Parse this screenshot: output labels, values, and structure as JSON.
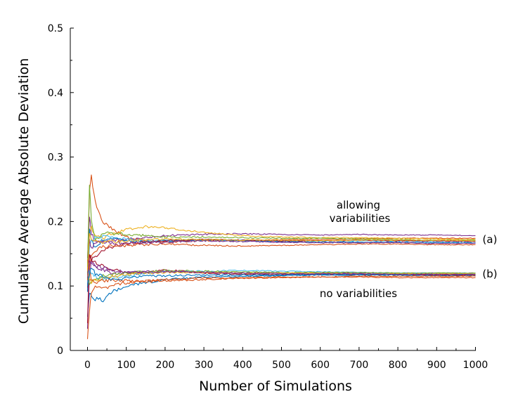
{
  "chart_data": {
    "type": "line",
    "title": "",
    "xlabel": "Number of Simulations",
    "ylabel": "Cumulative Average Absolute Deviation",
    "xlim": [
      -40,
      1000
    ],
    "ylim": [
      0,
      0.5
    ],
    "xticks": [
      0,
      100,
      200,
      300,
      400,
      500,
      600,
      700,
      800,
      900,
      1000
    ],
    "yticks": [
      0,
      0.1,
      0.2,
      0.3,
      0.4,
      0.5
    ],
    "ytick_labels": [
      "0",
      "0.1",
      "0.2",
      "0.3",
      "0.4",
      "0.5"
    ],
    "grid": false,
    "legend": "none",
    "annotations": [
      {
        "text": "allowing",
        "x": 700,
        "y": 0.226
      },
      {
        "text": "variabilities",
        "x": 700,
        "y": 0.205
      },
      {
        "text": "(a)",
        "x": 1040,
        "y": 0.172
      },
      {
        "text": "(b)",
        "x": 1040,
        "y": 0.119
      },
      {
        "text": "no variabilities",
        "x": 700,
        "y": 0.094
      }
    ],
    "groups": [
      {
        "label": "(a)",
        "series": [
          {
            "color": "#7E2F8E",
            "x": [
              0,
              5,
              10,
              20,
              40,
              60,
              100,
              150,
              200,
              300,
              400,
              500,
              600,
              700,
              800,
              900,
              1000
            ],
            "y": [
              0.14,
              0.21,
              0.18,
              0.17,
              0.165,
              0.17,
              0.172,
              0.175,
              0.178,
              0.18,
              0.181,
              0.18,
              0.179,
              0.18,
              0.179,
              0.179,
              0.178
            ]
          },
          {
            "color": "#D95319",
            "x": [
              0,
              5,
              10,
              20,
              40,
              60,
              100,
              150,
              200,
              300,
              400,
              500,
              600,
              700,
              800,
              900,
              1000
            ],
            "y": [
              0.12,
              0.25,
              0.27,
              0.23,
              0.2,
              0.19,
              0.175,
              0.17,
              0.168,
              0.17,
              0.171,
              0.172,
              0.172,
              0.173,
              0.174,
              0.174,
              0.174
            ]
          },
          {
            "color": "#EDB120",
            "x": [
              0,
              5,
              10,
              20,
              40,
              60,
              100,
              150,
              200,
              300,
              400,
              500,
              600,
              700,
              800,
              900,
              1000
            ],
            "y": [
              0.11,
              0.18,
              0.19,
              0.18,
              0.175,
              0.18,
              0.188,
              0.192,
              0.19,
              0.183,
              0.178,
              0.176,
              0.175,
              0.175,
              0.174,
              0.173,
              0.172
            ]
          },
          {
            "color": "#77AC30",
            "x": [
              0,
              5,
              10,
              20,
              40,
              60,
              100,
              150,
              200,
              300,
              400,
              500,
              600,
              700,
              800,
              900,
              1000
            ],
            "y": [
              0.13,
              0.26,
              0.2,
              0.17,
              0.18,
              0.182,
              0.18,
              0.178,
              0.176,
              0.176,
              0.175,
              0.174,
              0.174,
              0.173,
              0.172,
              0.171,
              0.171
            ]
          },
          {
            "color": "#4DBEEE",
            "x": [
              0,
              5,
              10,
              20,
              40,
              60,
              100,
              150,
              200,
              300,
              400,
              500,
              600,
              700,
              800,
              900,
              1000
            ],
            "y": [
              0.1,
              0.16,
              0.17,
              0.175,
              0.178,
              0.175,
              0.172,
              0.17,
              0.171,
              0.172,
              0.171,
              0.17,
              0.17,
              0.17,
              0.17,
              0.169,
              0.169
            ]
          },
          {
            "color": "#0072BD",
            "x": [
              0,
              5,
              10,
              20,
              40,
              60,
              100,
              150,
              200,
              300,
              400,
              500,
              600,
              700,
              800,
              900,
              1000
            ],
            "y": [
              0.09,
              0.19,
              0.17,
              0.16,
              0.172,
              0.175,
              0.17,
              0.168,
              0.17,
              0.171,
              0.17,
              0.169,
              0.168,
              0.168,
              0.168,
              0.167,
              0.167
            ]
          },
          {
            "color": "#A2142F",
            "x": [
              0,
              5,
              10,
              20,
              40,
              60,
              100,
              150,
              200,
              300,
              400,
              500,
              600,
              700,
              800,
              900,
              1000
            ],
            "y": [
              0.1,
              0.15,
              0.14,
              0.145,
              0.155,
              0.16,
              0.165,
              0.168,
              0.17,
              0.172,
              0.171,
              0.17,
              0.17,
              0.171,
              0.17,
              0.17,
              0.169
            ]
          },
          {
            "color": "#D95319",
            "x": [
              0,
              5,
              10,
              20,
              40,
              60,
              100,
              150,
              200,
              300,
              400,
              500,
              600,
              700,
              800,
              900,
              1000
            ],
            "y": [
              0.11,
              0.13,
              0.15,
              0.155,
              0.16,
              0.162,
              0.163,
              0.164,
              0.165,
              0.163,
              0.162,
              0.163,
              0.164,
              0.165,
              0.165,
              0.164,
              0.164
            ]
          },
          {
            "color": "#7E2F8E",
            "x": [
              0,
              5,
              10,
              20,
              40,
              60,
              100,
              150,
              200,
              300,
              400,
              500,
              600,
              700,
              800,
              900,
              1000
            ],
            "y": [
              0.12,
              0.17,
              0.16,
              0.165,
              0.17,
              0.168,
              0.166,
              0.167,
              0.168,
              0.17,
              0.169,
              0.168,
              0.167,
              0.167,
              0.167,
              0.166,
              0.166
            ]
          },
          {
            "color": "#EDB120",
            "x": [
              0,
              5,
              10,
              20,
              40,
              60,
              100,
              150,
              200,
              300,
              400,
              500,
              600,
              700,
              800,
              900,
              1000
            ],
            "y": [
              0.12,
              0.18,
              0.175,
              0.17,
              0.168,
              0.169,
              0.17,
              0.172,
              0.173,
              0.172,
              0.171,
              0.171,
              0.17,
              0.171,
              0.171,
              0.171,
              0.17
            ]
          }
        ]
      },
      {
        "label": "(b)",
        "series": [
          {
            "color": "#0072BD",
            "x": [
              0,
              5,
              10,
              20,
              40,
              60,
              100,
              150,
              200,
              300,
              400,
              500,
              600,
              700,
              800,
              900,
              1000
            ],
            "y": [
              0.05,
              0.09,
              0.085,
              0.08,
              0.078,
              0.09,
              0.1,
              0.105,
              0.11,
              0.114,
              0.115,
              0.116,
              0.117,
              0.117,
              0.117,
              0.116,
              0.116
            ]
          },
          {
            "color": "#D95319",
            "x": [
              0,
              5,
              10,
              20,
              40,
              60,
              100,
              150,
              200,
              300,
              400,
              500,
              600,
              700,
              800,
              900,
              1000
            ],
            "y": [
              0.02,
              0.06,
              0.09,
              0.1,
              0.095,
              0.1,
              0.105,
              0.108,
              0.11,
              0.112,
              0.113,
              0.114,
              0.114,
              0.114,
              0.113,
              0.113,
              0.113
            ]
          },
          {
            "color": "#7E2F8E",
            "x": [
              0,
              5,
              10,
              20,
              40,
              60,
              100,
              150,
              200,
              300,
              400,
              500,
              600,
              700,
              800,
              900,
              1000
            ],
            "y": [
              0.03,
              0.12,
              0.14,
              0.13,
              0.125,
              0.12,
              0.12,
              0.122,
              0.122,
              0.121,
              0.12,
              0.12,
              0.12,
              0.12,
              0.12,
              0.12,
              0.12
            ]
          },
          {
            "color": "#A2142F",
            "x": [
              0,
              5,
              10,
              20,
              40,
              60,
              100,
              150,
              200,
              300,
              400,
              500,
              600,
              700,
              800,
              900,
              1000
            ],
            "y": [
              0.04,
              0.15,
              0.14,
              0.138,
              0.13,
              0.126,
              0.12,
              0.12,
              0.125,
              0.12,
              0.118,
              0.118,
              0.118,
              0.118,
              0.118,
              0.117,
              0.117
            ]
          },
          {
            "color": "#4DBEEE",
            "x": [
              0,
              5,
              10,
              20,
              40,
              60,
              100,
              150,
              200,
              300,
              400,
              500,
              600,
              700,
              800,
              900,
              1000
            ],
            "y": [
              0.1,
              0.13,
              0.12,
              0.115,
              0.112,
              0.113,
              0.115,
              0.12,
              0.122,
              0.123,
              0.124,
              0.123,
              0.122,
              0.121,
              0.12,
              0.12,
              0.12
            ]
          },
          {
            "color": "#77AC30",
            "x": [
              0,
              5,
              10,
              20,
              40,
              60,
              100,
              150,
              200,
              300,
              400,
              500,
              600,
              700,
              800,
              900,
              1000
            ],
            "y": [
              0.12,
              0.1,
              0.105,
              0.11,
              0.115,
              0.118,
              0.12,
              0.122,
              0.124,
              0.123,
              0.122,
              0.121,
              0.121,
              0.121,
              0.12,
              0.12,
              0.12
            ]
          },
          {
            "color": "#EDB120",
            "x": [
              0,
              5,
              10,
              20,
              40,
              60,
              100,
              150,
              200,
              300,
              400,
              500,
              600,
              700,
              800,
              900,
              1000
            ],
            "y": [
              0.13,
              0.11,
              0.105,
              0.11,
              0.112,
              0.114,
              0.118,
              0.12,
              0.121,
              0.121,
              0.12,
              0.12,
              0.12,
              0.119,
              0.119,
              0.119,
              0.119
            ]
          },
          {
            "color": "#D95319",
            "x": [
              0,
              5,
              10,
              20,
              40,
              60,
              100,
              150,
              200,
              300,
              400,
              500,
              600,
              700,
              800,
              900,
              1000
            ],
            "y": [
              0.14,
              0.125,
              0.11,
              0.105,
              0.108,
              0.11,
              0.108,
              0.107,
              0.108,
              0.11,
              0.112,
              0.113,
              0.114,
              0.115,
              0.115,
              0.115,
              0.115
            ]
          },
          {
            "color": "#0072BD",
            "x": [
              0,
              5,
              10,
              20,
              40,
              60,
              100,
              150,
              200,
              300,
              400,
              500,
              600,
              700,
              800,
              900,
              1000
            ],
            "y": [
              0.1,
              0.12,
              0.13,
              0.12,
              0.115,
              0.11,
              0.112,
              0.115,
              0.116,
              0.117,
              0.117,
              0.117,
              0.118,
              0.118,
              0.118,
              0.118,
              0.118
            ]
          },
          {
            "color": "#7E2F8E",
            "x": [
              0,
              5,
              10,
              20,
              40,
              60,
              100,
              150,
              200,
              300,
              400,
              500,
              600,
              700,
              800,
              900,
              1000
            ],
            "y": [
              0.11,
              0.14,
              0.135,
              0.13,
              0.128,
              0.124,
              0.122,
              0.121,
              0.122,
              0.121,
              0.12,
              0.119,
              0.119,
              0.119,
              0.118,
              0.118,
              0.118
            ]
          }
        ]
      }
    ]
  }
}
